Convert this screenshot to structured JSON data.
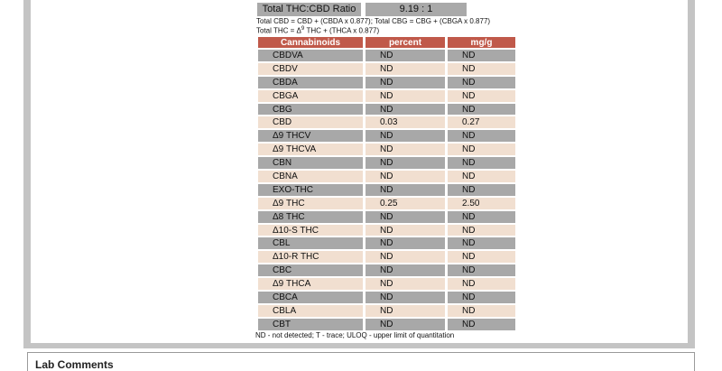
{
  "ratio": {
    "label": "Total THC:CBD Ratio",
    "value": "9.19 : 1"
  },
  "formulas": {
    "line1": "Total CBD = CBD + (CBDA x 0.877); Total CBG = CBG + (CBGA x 0.877)",
    "line2_prefix": "Total THC = Δ",
    "line2_sup": "9",
    "line2_suffix": " THC + (THCA x 0.877)"
  },
  "table": {
    "headers": [
      "Cannabinoids",
      "percent",
      "mg/g"
    ],
    "rows": [
      {
        "name": "CBDVA",
        "percent": "ND",
        "mgg": "ND"
      },
      {
        "name": "CBDV",
        "percent": "ND",
        "mgg": "ND"
      },
      {
        "name": "CBDA",
        "percent": "ND",
        "mgg": "ND"
      },
      {
        "name": "CBGA",
        "percent": "ND",
        "mgg": "ND"
      },
      {
        "name": "CBG",
        "percent": "ND",
        "mgg": "ND"
      },
      {
        "name": "CBD",
        "percent": "0.03",
        "mgg": "0.27"
      },
      {
        "name": "Δ9 THCV",
        "percent": "ND",
        "mgg": "ND"
      },
      {
        "name": "Δ9 THCVA",
        "percent": "ND",
        "mgg": "ND"
      },
      {
        "name": "CBN",
        "percent": "ND",
        "mgg": "ND"
      },
      {
        "name": "CBNA",
        "percent": "ND",
        "mgg": "ND"
      },
      {
        "name": "EXO-THC",
        "percent": "ND",
        "mgg": "ND"
      },
      {
        "name": "Δ9 THC",
        "percent": "0.25",
        "mgg": "2.50"
      },
      {
        "name": "Δ8 THC",
        "percent": "ND",
        "mgg": "ND"
      },
      {
        "name": "Δ10-S THC",
        "percent": "ND",
        "mgg": "ND"
      },
      {
        "name": "CBL",
        "percent": "ND",
        "mgg": "ND"
      },
      {
        "name": "Δ10-R THC",
        "percent": "ND",
        "mgg": "ND"
      },
      {
        "name": "CBC",
        "percent": "ND",
        "mgg": "ND"
      },
      {
        "name": "Δ9 THCA",
        "percent": "ND",
        "mgg": "ND"
      },
      {
        "name": "CBCA",
        "percent": "ND",
        "mgg": "ND"
      },
      {
        "name": "CBLA",
        "percent": "ND",
        "mgg": "ND"
      },
      {
        "name": "CBT",
        "percent": "ND",
        "mgg": "ND"
      }
    ]
  },
  "footnote": "ND - not detected; T - trace; ULOQ - upper limit of quantitation",
  "lab_comments_title": "Lab Comments",
  "colors": {
    "header": "#c0594a",
    "row_gray": "#a8a8a8",
    "row_tan": "#f1dfd0",
    "frame": "#c4c4c4"
  }
}
